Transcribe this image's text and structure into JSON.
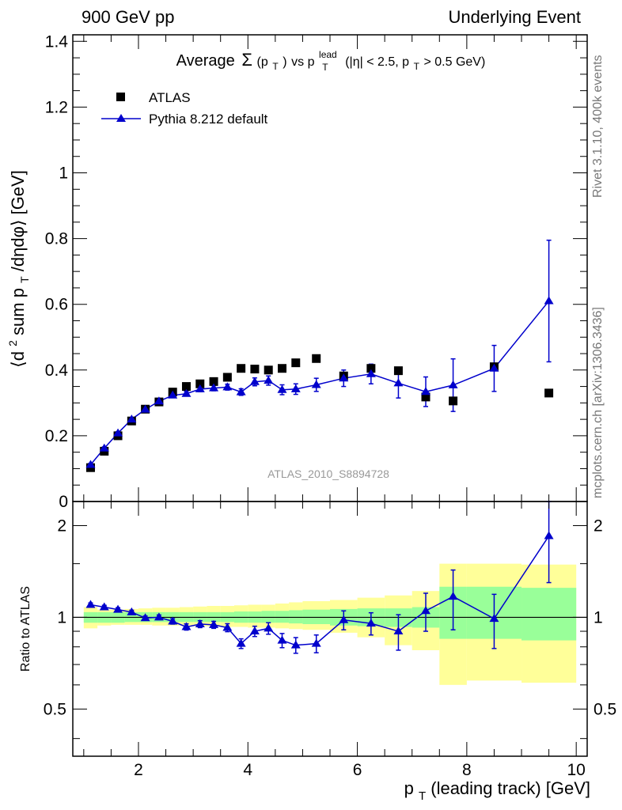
{
  "header": {
    "left": "900 GeV pp",
    "right": "Underlying Event"
  },
  "side_labels": {
    "top": "Rivet 3.1.10,  400k events",
    "bottom": "mcplots.cern.ch [arXiv:1306.3436]"
  },
  "plot_title": {
    "prefix": "Average",
    "sigma": "Σ",
    "pt": "(p",
    "pt_sub": "T",
    "pt_close": ")",
    "vs": " vs p",
    "lead_sup": "lead",
    "lead_sub": "T",
    "cuts_a": " (|η| < 2.5, p",
    "cuts_sub": "T",
    "cuts_b": " > 0.5 GeV)"
  },
  "watermark": "ATLAS_2010_S8894728",
  "axes": {
    "y_top": {
      "a": "⟨d",
      "sup": "2",
      "b": " sum p",
      "sub": "T",
      "c": "/dηdφ⟩ [GeV]"
    },
    "y_bottom": "Ratio to ATLAS",
    "x": {
      "a": "p",
      "sub": "T",
      "b": " (leading track) [GeV]"
    }
  },
  "colors": {
    "data": "#000000",
    "mc": "#0000cc",
    "band_inner": "#99ff99",
    "band_outer": "#ffff99"
  },
  "chart_data": [
    {
      "type": "scatter",
      "xlim": [
        0.8,
        10.2
      ],
      "ylim": [
        0,
        1.42
      ],
      "x_ticks": [
        2,
        4,
        6,
        8,
        10
      ],
      "x_tick_labels": [
        "2",
        "4",
        "6",
        "8",
        "10"
      ],
      "y_ticks": [
        0,
        0.2,
        0.4,
        0.6,
        0.8,
        1,
        1.2,
        1.4
      ],
      "y_tick_labels": [
        "0",
        "0.2",
        "0.4",
        "0.6",
        "0.8",
        "1",
        "1.2",
        "1.4"
      ],
      "legend_position": "top-left",
      "series": [
        {
          "name": "ATLAS",
          "marker": "square",
          "x": [
            1.125,
            1.375,
            1.625,
            1.875,
            2.125,
            2.375,
            2.625,
            2.875,
            3.125,
            3.375,
            3.625,
            3.875,
            4.125,
            4.375,
            4.625,
            4.875,
            5.25,
            5.75,
            6.25,
            6.75,
            7.25,
            7.75,
            8.5,
            9.5
          ],
          "y": [
            0.103,
            0.153,
            0.2,
            0.245,
            0.281,
            0.303,
            0.333,
            0.35,
            0.358,
            0.365,
            0.378,
            0.405,
            0.403,
            0.4,
            0.405,
            0.422,
            0.435,
            0.382,
            0.405,
            0.398,
            0.318,
            0.306,
            0.41,
            0.33
          ]
        },
        {
          "name": "Pythia 8.212 default",
          "marker": "triangle",
          "x": [
            1.125,
            1.375,
            1.625,
            1.875,
            2.125,
            2.375,
            2.625,
            2.875,
            3.125,
            3.375,
            3.625,
            3.875,
            4.125,
            4.375,
            4.625,
            4.875,
            5.25,
            5.75,
            6.25,
            6.75,
            7.25,
            7.75,
            8.5,
            9.5
          ],
          "y": [
            0.112,
            0.162,
            0.208,
            0.25,
            0.28,
            0.305,
            0.323,
            0.328,
            0.342,
            0.345,
            0.348,
            0.333,
            0.364,
            0.368,
            0.34,
            0.342,
            0.355,
            0.375,
            0.388,
            0.36,
            0.334,
            0.354,
            0.405,
            0.61
          ],
          "err": [
            0.004,
            0.004,
            0.004,
            0.004,
            0.004,
            0.005,
            0.006,
            0.007,
            0.008,
            0.008,
            0.009,
            0.01,
            0.012,
            0.014,
            0.015,
            0.016,
            0.02,
            0.025,
            0.03,
            0.045,
            0.045,
            0.08,
            0.07,
            0.185
          ]
        }
      ]
    },
    {
      "type": "line",
      "xlim": [
        0.8,
        10.2
      ],
      "ylim": [
        0.35,
        2.4
      ],
      "log_y": true,
      "y_ticks": [
        0.5,
        1,
        2
      ],
      "y_tick_labels": [
        "0.5",
        "1",
        "2"
      ],
      "x_ticks": [
        2,
        4,
        6,
        8,
        10
      ],
      "x_tick_labels": [
        "2",
        "4",
        "6",
        "8",
        "10"
      ],
      "bands": {
        "x_edges": [
          1.0,
          1.25,
          1.5,
          1.75,
          2.0,
          2.25,
          2.5,
          2.75,
          3.0,
          3.25,
          3.5,
          3.75,
          4.0,
          4.25,
          4.5,
          4.75,
          5.0,
          5.5,
          6.0,
          6.5,
          7.0,
          7.5,
          8.0,
          9.0,
          10.0
        ],
        "inner": [
          [
            0.96,
            1.04
          ],
          [
            0.96,
            1.04
          ],
          [
            0.96,
            1.04
          ],
          [
            0.965,
            1.04
          ],
          [
            0.965,
            1.04
          ],
          [
            0.965,
            1.04
          ],
          [
            0.965,
            1.04
          ],
          [
            0.965,
            1.04
          ],
          [
            0.965,
            1.04
          ],
          [
            0.965,
            1.04
          ],
          [
            0.965,
            1.04
          ],
          [
            0.96,
            1.045
          ],
          [
            0.96,
            1.045
          ],
          [
            0.96,
            1.05
          ],
          [
            0.96,
            1.05
          ],
          [
            0.955,
            1.055
          ],
          [
            0.95,
            1.06
          ],
          [
            0.94,
            1.065
          ],
          [
            0.935,
            1.07
          ],
          [
            0.93,
            1.07
          ],
          [
            0.925,
            1.08
          ],
          [
            0.85,
            1.26
          ],
          [
            0.85,
            1.26
          ],
          [
            0.84,
            1.25
          ]
        ],
        "outer": [
          [
            0.92,
            1.08
          ],
          [
            0.94,
            1.06
          ],
          [
            0.945,
            1.06
          ],
          [
            0.945,
            1.065
          ],
          [
            0.945,
            1.07
          ],
          [
            0.94,
            1.075
          ],
          [
            0.94,
            1.075
          ],
          [
            0.94,
            1.08
          ],
          [
            0.935,
            1.085
          ],
          [
            0.935,
            1.09
          ],
          [
            0.93,
            1.09
          ],
          [
            0.93,
            1.095
          ],
          [
            0.925,
            1.1
          ],
          [
            0.925,
            1.1
          ],
          [
            0.92,
            1.11
          ],
          [
            0.915,
            1.12
          ],
          [
            0.91,
            1.13
          ],
          [
            0.89,
            1.14
          ],
          [
            0.86,
            1.16
          ],
          [
            0.81,
            1.18
          ],
          [
            0.78,
            1.22
          ],
          [
            0.6,
            1.5
          ],
          [
            0.62,
            1.5
          ],
          [
            0.61,
            1.49
          ]
        ]
      },
      "series": [
        {
          "name": "Pythia 8.212 default",
          "x": [
            1.125,
            1.375,
            1.625,
            1.875,
            2.125,
            2.375,
            2.625,
            2.875,
            3.125,
            3.375,
            3.625,
            3.875,
            4.125,
            4.375,
            4.625,
            4.875,
            5.25,
            5.75,
            6.25,
            6.75,
            7.25,
            7.75,
            8.5,
            9.5
          ],
          "y": [
            1.1,
            1.08,
            1.06,
            1.04,
            0.995,
            1.0,
            0.97,
            0.93,
            0.95,
            0.945,
            0.925,
            0.82,
            0.9,
            0.92,
            0.84,
            0.81,
            0.82,
            0.98,
            0.955,
            0.9,
            1.05,
            1.17,
            0.99,
            1.85
          ],
          "err": [
            0.015,
            0.015,
            0.015,
            0.015,
            0.015,
            0.018,
            0.02,
            0.022,
            0.025,
            0.025,
            0.028,
            0.03,
            0.035,
            0.04,
            0.045,
            0.048,
            0.055,
            0.07,
            0.08,
            0.12,
            0.15,
            0.26,
            0.2,
            0.55
          ]
        }
      ]
    }
  ]
}
